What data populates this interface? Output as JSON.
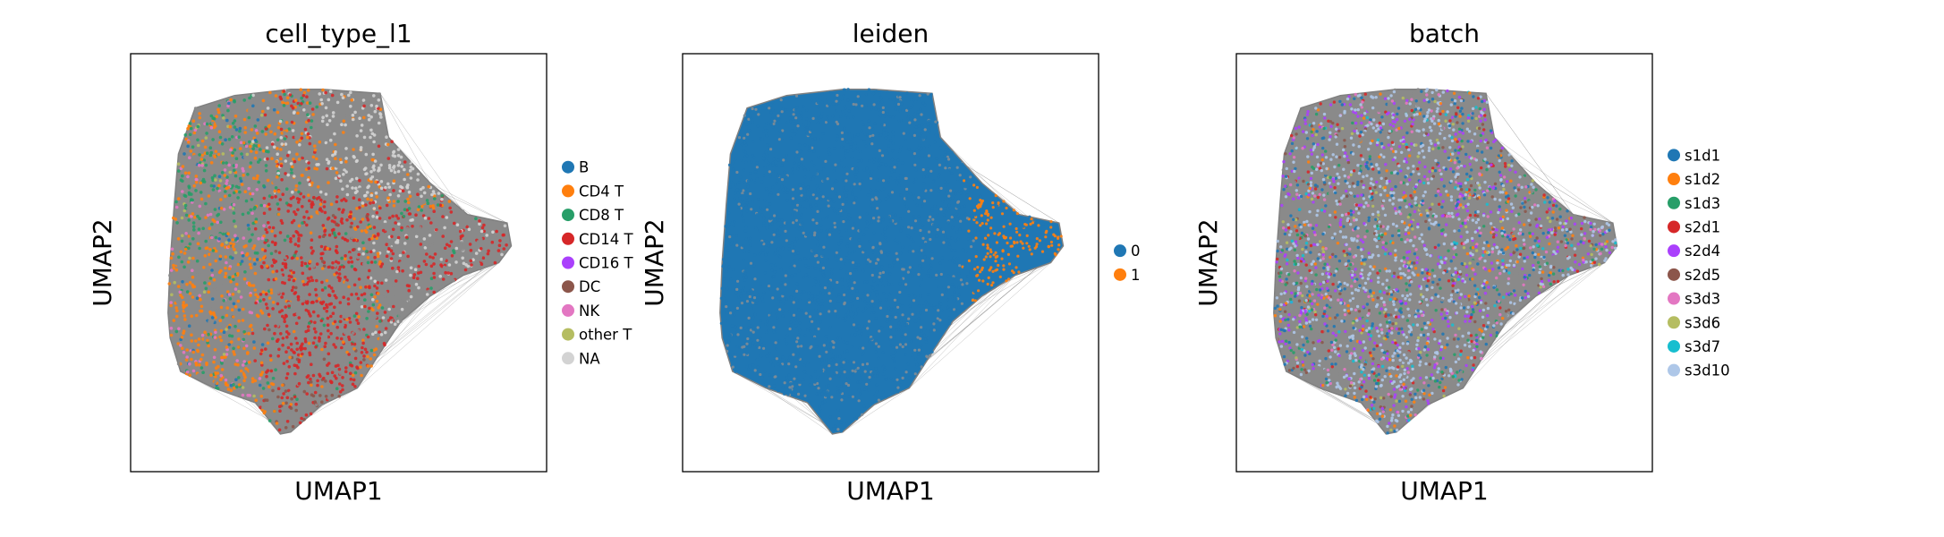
{
  "chart_data": [
    {
      "type": "scatter",
      "title": "cell_type_l1",
      "xlabel": "UMAP1",
      "ylabel": "UMAP2",
      "grid": false,
      "ticks": "none",
      "legend_placement": "right",
      "legend": [
        {
          "name": "B",
          "color": "#1f77b4"
        },
        {
          "name": "CD4 T",
          "color": "#ff7f0e"
        },
        {
          "name": "CD8 T",
          "color": "#279e68"
        },
        {
          "name": "CD14 T",
          "color": "#d62728"
        },
        {
          "name": "CD16 T",
          "color": "#aa40fc"
        },
        {
          "name": "DC",
          "color": "#8c564b"
        },
        {
          "name": "NK",
          "color": "#e377c2"
        },
        {
          "name": "other T",
          "color": "#b5bd61"
        },
        {
          "name": "NA",
          "color": "#d3d3d3"
        }
      ]
    },
    {
      "type": "scatter",
      "title": "leiden",
      "xlabel": "UMAP1",
      "ylabel": "UMAP2",
      "grid": false,
      "ticks": "none",
      "legend_placement": "right",
      "legend": [
        {
          "name": "0",
          "color": "#1f77b4"
        },
        {
          "name": "1",
          "color": "#ff7f0e"
        }
      ]
    },
    {
      "type": "scatter",
      "title": "batch",
      "xlabel": "UMAP1",
      "ylabel": "UMAP2",
      "grid": false,
      "ticks": "none",
      "legend_placement": "right",
      "legend": [
        {
          "name": "s1d1",
          "color": "#1f77b4"
        },
        {
          "name": "s1d2",
          "color": "#ff7f0e"
        },
        {
          "name": "s1d3",
          "color": "#279e68"
        },
        {
          "name": "s2d1",
          "color": "#d62728"
        },
        {
          "name": "s2d4",
          "color": "#aa40fc"
        },
        {
          "name": "s2d5",
          "color": "#8c564b"
        },
        {
          "name": "s3d3",
          "color": "#e377c2"
        },
        {
          "name": "s3d6",
          "color": "#b5bd61"
        },
        {
          "name": "s3d7",
          "color": "#17becf"
        },
        {
          "name": "s3d10",
          "color": "#aec7e8"
        }
      ]
    }
  ]
}
